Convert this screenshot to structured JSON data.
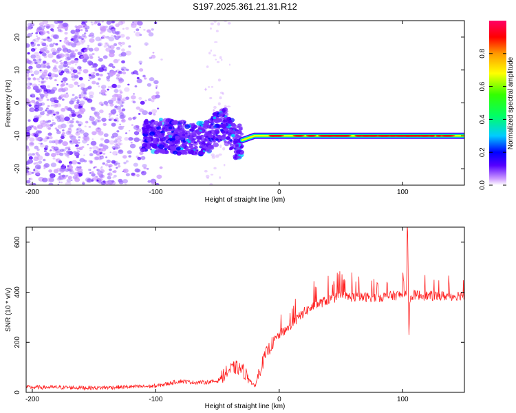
{
  "title": "S197.2025.361.21.31.R12",
  "chart_data": [
    {
      "type": "heatmap",
      "xlabel": "Height of straight line (km)",
      "ylabel": "Frequency (Hz)",
      "xlim": [
        -205,
        150
      ],
      "ylim": [
        -25,
        25
      ],
      "xticks": [
        -200,
        -100,
        0,
        100
      ],
      "yticks": [
        -20,
        -10,
        0,
        10,
        20
      ],
      "colorbar": {
        "label": "Normalized spectral amplitude",
        "range": [
          0,
          1
        ],
        "ticks": [
          0.0,
          0.2,
          0.4,
          0.6,
          0.8
        ],
        "colors": [
          "#ffffff",
          "#cc99ff",
          "#5500ff",
          "#0000ff",
          "#00ccff",
          "#00ff66",
          "#ffff00",
          "#ff9900",
          "#ff0000",
          "#ff0066"
        ]
      },
      "ridge": [
        {
          "x": -95,
          "freq": -10
        },
        {
          "x": -60,
          "freq": -11
        },
        {
          "x": -45,
          "freq": -6
        },
        {
          "x": -35,
          "freq": -12
        },
        {
          "x": -20,
          "freq": -10
        },
        {
          "x": 0,
          "freq": -10
        },
        {
          "x": 50,
          "freq": -10
        },
        {
          "x": 100,
          "freq": -10
        },
        {
          "x": 150,
          "freq": -10
        }
      ]
    },
    {
      "type": "line",
      "xlabel": "Height of straight line (km)",
      "ylabel": "SNR (10 * v/v)",
      "xlim": [
        -205,
        150
      ],
      "ylim": [
        0,
        660
      ],
      "xticks": [
        -200,
        -100,
        0,
        100
      ],
      "yticks": [
        0,
        200,
        400,
        600
      ],
      "color": "#ff2020",
      "series": [
        {
          "name": "SNR",
          "x": [
            -205,
            -180,
            -150,
            -120,
            -100,
            -90,
            -80,
            -70,
            -60,
            -50,
            -45,
            -40,
            -35,
            -30,
            -25,
            -20,
            -15,
            -10,
            -5,
            0,
            10,
            20,
            30,
            40,
            50,
            60,
            70,
            80,
            90,
            100,
            103,
            104,
            105,
            106,
            110,
            120,
            130,
            140,
            150
          ],
          "values": [
            20,
            20,
            18,
            22,
            25,
            35,
            45,
            40,
            40,
            45,
            70,
            90,
            100,
            90,
            60,
            20,
            100,
            160,
            200,
            230,
            270,
            320,
            350,
            370,
            385,
            380,
            380,
            380,
            385,
            390,
            400,
            660,
            200,
            380,
            390,
            385,
            385,
            385,
            390
          ]
        }
      ]
    }
  ]
}
